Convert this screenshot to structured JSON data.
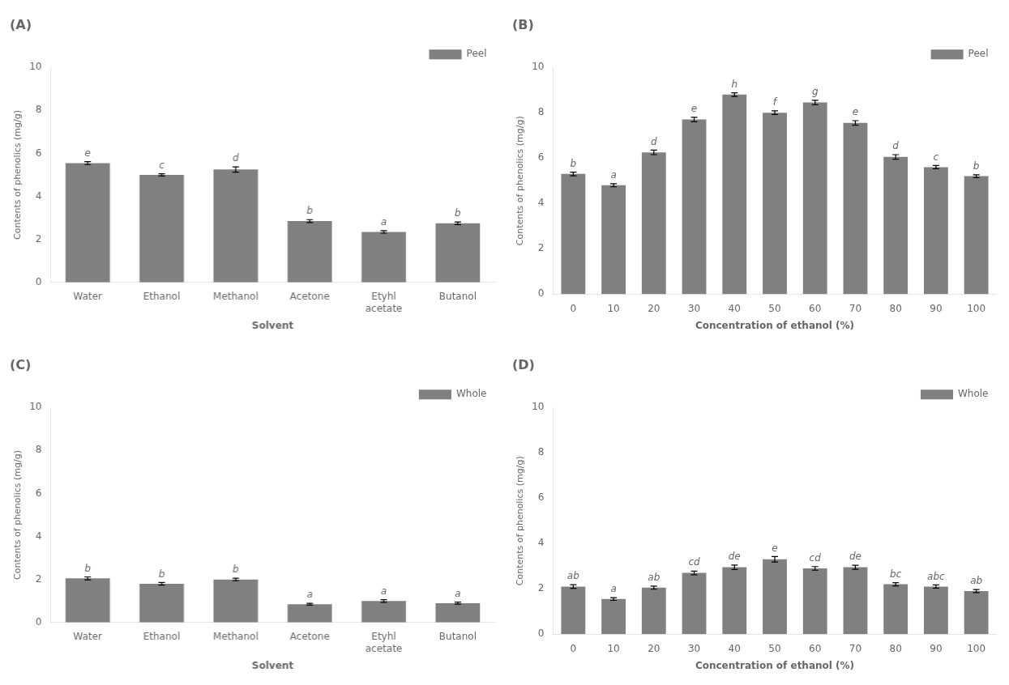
{
  "chart_data": [
    {
      "type": "bar",
      "title": "(A)",
      "xlabel": "Solvent",
      "ylabel": "Contents of phenolics (mg/g)",
      "categories": [
        "Water",
        "Ethanol",
        "Methanol",
        "Acetone",
        "Etyhl\nacetate",
        "Butanol"
      ],
      "series": [
        {
          "name": "Peel",
          "color": "#808080",
          "values": [
            5.55,
            5.0,
            5.25,
            2.85,
            2.35,
            2.75
          ],
          "errors": [
            0.07,
            0.05,
            0.12,
            0.07,
            0.06,
            0.06
          ]
        }
      ],
      "annotations": [
        "e",
        "c",
        "d",
        "b",
        "a",
        "b"
      ],
      "ylim": [
        0,
        10
      ],
      "yticks": [
        0,
        2,
        4,
        6,
        8,
        10
      ],
      "legend": "upper right",
      "grid": false
    },
    {
      "type": "bar",
      "title": "(B)",
      "xlabel": "Concentration of ethanol (%)",
      "ylabel": "Contents of phenolics (mg/g)",
      "categories": [
        "0",
        "10",
        "20",
        "30",
        "40",
        "50",
        "60",
        "70",
        "80",
        "90",
        "100"
      ],
      "series": [
        {
          "name": "Peel",
          "color": "#808080",
          "values": [
            5.3,
            4.8,
            6.25,
            7.7,
            8.8,
            8.0,
            8.45,
            7.55,
            6.05,
            5.6,
            5.2
          ],
          "errors": [
            0.08,
            0.07,
            0.1,
            0.1,
            0.08,
            0.08,
            0.1,
            0.1,
            0.1,
            0.07,
            0.06
          ]
        }
      ],
      "annotations": [
        "b",
        "a",
        "d",
        "e",
        "h",
        "f",
        "g",
        "e",
        "d",
        "c",
        "b"
      ],
      "ylim": [
        0,
        10
      ],
      "yticks": [
        0,
        2,
        4,
        6,
        8,
        10
      ],
      "legend": "upper right",
      "grid": false
    },
    {
      "type": "bar",
      "title": "(C)",
      "xlabel": "Solvent",
      "ylabel": "Contents of phenolics (mg/g)",
      "categories": [
        "Water",
        "Ethanol",
        "Methanol",
        "Acetone",
        "Etyhl\nacetate",
        "Butanol"
      ],
      "series": [
        {
          "name": "Whole",
          "color": "#808080",
          "values": [
            2.05,
            1.8,
            2.0,
            0.85,
            1.0,
            0.9
          ],
          "errors": [
            0.07,
            0.06,
            0.06,
            0.04,
            0.06,
            0.05
          ]
        }
      ],
      "annotations": [
        "b",
        "b",
        "b",
        "a",
        "a",
        "a"
      ],
      "ylim": [
        0,
        10
      ],
      "yticks": [
        0,
        2,
        4,
        6,
        8,
        10
      ],
      "legend": "upper right",
      "grid": false
    },
    {
      "type": "bar",
      "title": "(D)",
      "xlabel": "Concentration of ethanol (%)",
      "ylabel": "Contents of phenolics (mg/g)",
      "categories": [
        "0",
        "10",
        "20",
        "30",
        "40",
        "50",
        "60",
        "70",
        "80",
        "90",
        "100"
      ],
      "series": [
        {
          "name": "Whole",
          "color": "#808080",
          "values": [
            2.1,
            1.55,
            2.05,
            2.7,
            2.95,
            3.3,
            2.9,
            2.95,
            2.2,
            2.1,
            1.9
          ],
          "errors": [
            0.08,
            0.06,
            0.07,
            0.08,
            0.1,
            0.12,
            0.08,
            0.09,
            0.07,
            0.07,
            0.07
          ]
        }
      ],
      "annotations": [
        "ab",
        "a",
        "ab",
        "cd",
        "de",
        "e",
        "cd",
        "de",
        "bc",
        "abc",
        "ab"
      ],
      "ylim": [
        0,
        10
      ],
      "yticks": [
        0,
        2,
        4,
        6,
        8,
        10
      ],
      "legend": "upper right",
      "grid": false
    }
  ]
}
